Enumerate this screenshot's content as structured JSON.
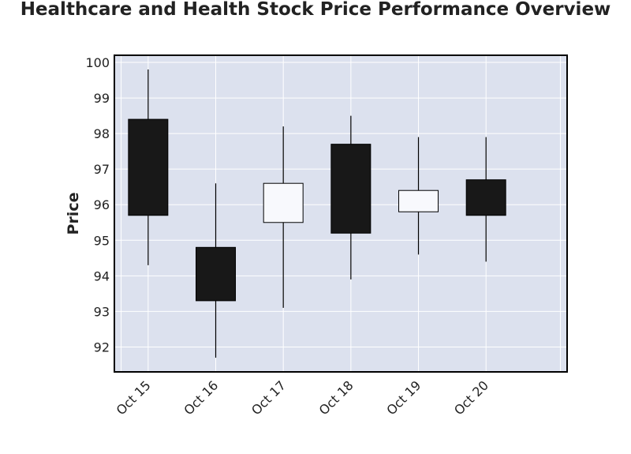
{
  "chart_data": {
    "type": "candlestick",
    "title": "Healthcare and Health Stock Price Performance Overview",
    "xlabel": "",
    "ylabel": "Price",
    "ylim": [
      91.3,
      100.2
    ],
    "yticks": [
      92,
      93,
      94,
      95,
      96,
      97,
      98,
      99,
      100
    ],
    "grid": true,
    "categories": [
      "Oct 15",
      "Oct 16",
      "Oct 17",
      "Oct 18",
      "Oct 19",
      "Oct 20"
    ],
    "series": [
      {
        "open": [
          98.4,
          94.8,
          95.5,
          97.7,
          95.8,
          96.7
        ],
        "high": [
          99.8,
          96.6,
          98.2,
          98.5,
          97.9,
          97.9
        ],
        "low": [
          94.3,
          91.7,
          93.1,
          93.9,
          94.6,
          94.4
        ],
        "close": [
          95.7,
          93.3,
          96.6,
          95.2,
          96.4,
          95.7
        ]
      }
    ],
    "colors": {
      "up_fill": "#f8f9fd",
      "down_fill": "#181818",
      "edge": "#000000",
      "plot_bg": "#dce1ee",
      "grid": "#ffffff"
    }
  }
}
